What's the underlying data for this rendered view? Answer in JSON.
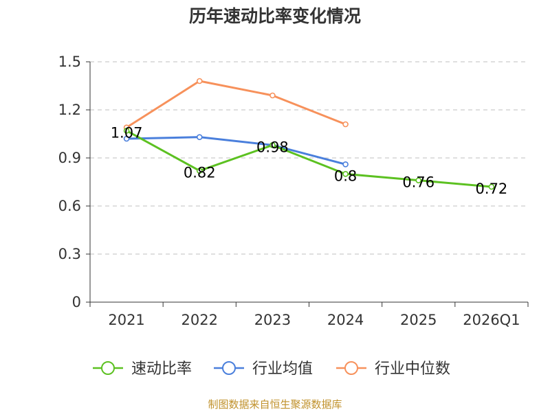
{
  "chart_data": {
    "type": "line",
    "title": "历年速动比率变化情况",
    "categories": [
      "2021",
      "2022",
      "2023",
      "2024",
      "2025",
      "2026Q1"
    ],
    "ylim": [
      0,
      1.5
    ],
    "yticks": [
      "0",
      "0.3",
      "0.6",
      "0.9",
      "1.2",
      "1.5"
    ],
    "ytick_values": [
      0,
      0.3,
      0.6,
      0.9,
      1.2,
      1.5
    ],
    "grid": true,
    "legend_position": "bottom-center",
    "series": [
      {
        "name": "速动比率",
        "color": "#5cc121",
        "values": [
          1.07,
          0.82,
          0.98,
          0.8,
          0.76,
          0.72
        ],
        "labels": [
          "1.07",
          "0.82",
          "0.98",
          "0.8",
          "0.76",
          "0.72"
        ]
      },
      {
        "name": "行业均值",
        "color": "#4a7fdc",
        "values": [
          1.02,
          1.03,
          0.98,
          0.86,
          null,
          null
        ]
      },
      {
        "name": "行业中位数",
        "color": "#f7915b",
        "values": [
          1.09,
          1.38,
          1.29,
          1.11,
          null,
          null
        ]
      }
    ],
    "source": "制图数据来自恒生聚源数据库"
  }
}
